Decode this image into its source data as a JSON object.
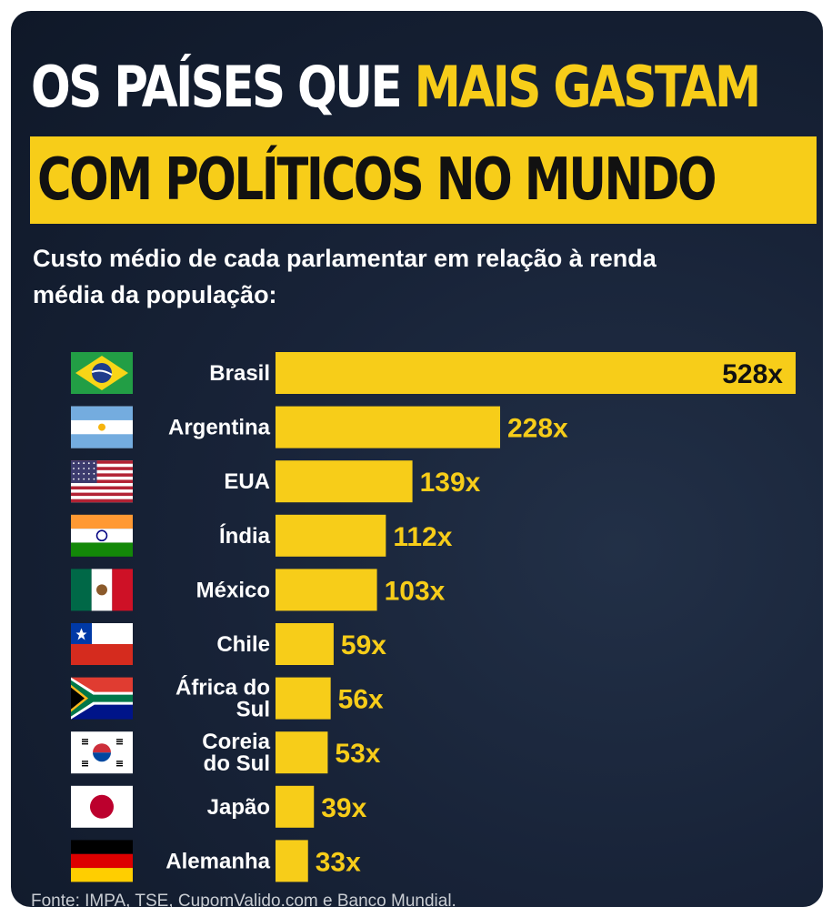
{
  "title": {
    "part1": "OS PAÍSES QUE ",
    "part2": "MAIS GASTAM",
    "line2": "COM POLÍTICOS NO MUNDO"
  },
  "subtitle": {
    "line1": "Custo médio de cada parlamentar em relação à renda",
    "line2": "média da população:"
  },
  "source": "Fonte: IMPA, TSE, CupomValido.com e Banco Mundial.",
  "colors": {
    "accent": "#f7cd19",
    "background": "#182338",
    "text": "#ffffff"
  },
  "chart_data": {
    "type": "bar",
    "orientation": "horizontal",
    "title": "OS PAÍSES QUE MAIS GASTAM COM POLÍTICOS NO MUNDO",
    "subtitle": "Custo médio de cada parlamentar em relação à renda média da população:",
    "categories": [
      [
        "Brasil"
      ],
      [
        "Argentina"
      ],
      [
        "EUA"
      ],
      [
        "Índia"
      ],
      [
        "México"
      ],
      [
        "Chile"
      ],
      [
        "África do",
        "Sul"
      ],
      [
        "Coreia",
        "do Sul"
      ],
      [
        "Japão"
      ],
      [
        "Alemanha"
      ]
    ],
    "flags": [
      "brazil-flag-icon",
      "argentina-flag-icon",
      "usa-flag-icon",
      "india-flag-icon",
      "mexico-flag-icon",
      "chile-flag-icon",
      "south-africa-flag-icon",
      "south-korea-flag-icon",
      "japan-flag-icon",
      "germany-flag-icon"
    ],
    "values": [
      528,
      228,
      139,
      112,
      103,
      59,
      56,
      53,
      39,
      33
    ],
    "value_labels": [
      "528x",
      "228x",
      "139x",
      "112x",
      "103x",
      "59x",
      "56x",
      "53x",
      "39x",
      "33x"
    ],
    "xlim": [
      0,
      528
    ],
    "grid": false,
    "legend": "none"
  }
}
